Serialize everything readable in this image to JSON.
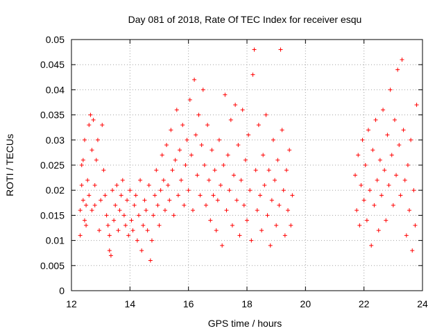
{
  "chart_data": {
    "type": "scatter",
    "title": "Day 081 of 2018, Rate Of TEC Index for receiver esqu",
    "xlabel": "GPS time / hours",
    "ylabel": "ROTI / TECUs",
    "xlim": [
      12,
      24
    ],
    "ylim": [
      0,
      0.05
    ],
    "xticks": [
      12,
      14,
      16,
      18,
      20,
      22,
      24
    ],
    "xtick_labels": [
      "12",
      "14",
      "16",
      "18",
      "20",
      "22",
      "24"
    ],
    "yticks": [
      0,
      0.005,
      0.01,
      0.015,
      0.02,
      0.025,
      0.03,
      0.035,
      0.04,
      0.045,
      0.05
    ],
    "ytick_labels": [
      "0",
      "0.005",
      "0.01",
      "0.015",
      "0.02",
      "0.025",
      "0.03",
      "0.035",
      "0.04",
      "0.045",
      "0.05"
    ],
    "grid": true,
    "marker": "+",
    "color": "#ff0000",
    "series": [
      {
        "name": "ROTI",
        "points": [
          [
            12.3,
            0.011
          ],
          [
            12.3,
            0.016
          ],
          [
            12.35,
            0.021
          ],
          [
            12.35,
            0.025
          ],
          [
            12.4,
            0.018
          ],
          [
            12.4,
            0.026
          ],
          [
            12.45,
            0.014
          ],
          [
            12.45,
            0.03
          ],
          [
            12.5,
            0.017
          ],
          [
            12.5,
            0.013
          ],
          [
            12.55,
            0.022
          ],
          [
            12.6,
            0.033
          ],
          [
            12.6,
            0.019
          ],
          [
            12.65,
            0.035
          ],
          [
            12.7,
            0.028
          ],
          [
            12.7,
            0.016
          ],
          [
            12.75,
            0.034
          ],
          [
            12.8,
            0.021
          ],
          [
            12.8,
            0.017
          ],
          [
            12.85,
            0.026
          ],
          [
            12.9,
            0.03
          ],
          [
            12.95,
            0.012
          ],
          [
            13.0,
            0.018
          ],
          [
            13.05,
            0.033
          ],
          [
            13.1,
            0.024
          ],
          [
            13.15,
            0.019
          ],
          [
            13.2,
            0.015
          ],
          [
            13.25,
            0.013
          ],
          [
            13.3,
            0.008
          ],
          [
            13.3,
            0.011
          ],
          [
            13.35,
            0.007
          ],
          [
            13.4,
            0.02
          ],
          [
            13.45,
            0.014
          ],
          [
            13.5,
            0.017
          ],
          [
            13.55,
            0.021
          ],
          [
            13.6,
            0.012
          ],
          [
            13.65,
            0.016
          ],
          [
            13.7,
            0.019
          ],
          [
            13.75,
            0.022
          ],
          [
            13.8,
            0.015
          ],
          [
            13.85,
            0.013
          ],
          [
            13.9,
            0.018
          ],
          [
            13.95,
            0.011
          ],
          [
            14.0,
            0.02
          ],
          [
            14.05,
            0.014
          ],
          [
            14.1,
            0.012
          ],
          [
            14.15,
            0.017
          ],
          [
            14.2,
            0.019
          ],
          [
            14.25,
            0.01
          ],
          [
            14.3,
            0.015
          ],
          [
            14.35,
            0.022
          ],
          [
            14.4,
            0.008
          ],
          [
            14.45,
            0.013
          ],
          [
            14.5,
            0.018
          ],
          [
            14.55,
            0.016
          ],
          [
            14.6,
            0.012
          ],
          [
            14.65,
            0.021
          ],
          [
            14.7,
            0.006
          ],
          [
            14.75,
            0.01
          ],
          [
            14.8,
            0.015
          ],
          [
            14.85,
            0.019
          ],
          [
            14.9,
            0.024
          ],
          [
            14.95,
            0.017
          ],
          [
            15.0,
            0.013
          ],
          [
            15.05,
            0.02
          ],
          [
            15.1,
            0.027
          ],
          [
            15.15,
            0.022
          ],
          [
            15.2,
            0.016
          ],
          [
            15.25,
            0.029
          ],
          [
            15.3,
            0.021
          ],
          [
            15.35,
            0.018
          ],
          [
            15.4,
            0.032
          ],
          [
            15.45,
            0.024
          ],
          [
            15.5,
            0.015
          ],
          [
            15.55,
            0.026
          ],
          [
            15.6,
            0.036
          ],
          [
            15.65,
            0.019
          ],
          [
            15.7,
            0.028
          ],
          [
            15.75,
            0.022
          ],
          [
            15.8,
            0.033
          ],
          [
            15.85,
            0.017
          ],
          [
            15.9,
            0.025
          ],
          [
            15.95,
            0.03
          ],
          [
            16.0,
            0.02
          ],
          [
            16.05,
            0.038
          ],
          [
            16.1,
            0.027
          ],
          [
            16.15,
            0.016
          ],
          [
            16.2,
            0.042
          ],
          [
            16.25,
            0.031
          ],
          [
            16.3,
            0.023
          ],
          [
            16.35,
            0.035
          ],
          [
            16.4,
            0.019
          ],
          [
            16.45,
            0.029
          ],
          [
            16.5,
            0.04
          ],
          [
            16.55,
            0.025
          ],
          [
            16.6,
            0.017
          ],
          [
            16.65,
            0.033
          ],
          [
            16.7,
            0.022
          ],
          [
            16.75,
            0.014
          ],
          [
            16.8,
            0.028
          ],
          [
            16.85,
            0.019
          ],
          [
            16.9,
            0.024
          ],
          [
            16.95,
            0.012
          ],
          [
            17.0,
            0.018
          ],
          [
            17.05,
            0.03
          ],
          [
            17.1,
            0.021
          ],
          [
            17.15,
            0.009
          ],
          [
            17.2,
            0.025
          ],
          [
            17.25,
            0.039
          ],
          [
            17.3,
            0.016
          ],
          [
            17.35,
            0.027
          ],
          [
            17.4,
            0.02
          ],
          [
            17.45,
            0.034
          ],
          [
            17.5,
            0.013
          ],
          [
            17.55,
            0.023
          ],
          [
            17.6,
            0.037
          ],
          [
            17.65,
            0.018
          ],
          [
            17.7,
            0.029
          ],
          [
            17.75,
            0.011
          ],
          [
            17.8,
            0.022
          ],
          [
            17.85,
            0.036
          ],
          [
            17.9,
            0.017
          ],
          [
            17.95,
            0.026
          ],
          [
            18.0,
            0.014
          ],
          [
            18.05,
            0.031
          ],
          [
            18.1,
            0.02
          ],
          [
            18.15,
            0.01
          ],
          [
            18.2,
            0.043
          ],
          [
            18.25,
            0.048
          ],
          [
            18.3,
            0.024
          ],
          [
            18.35,
            0.016
          ],
          [
            18.4,
            0.033
          ],
          [
            18.45,
            0.019
          ],
          [
            18.5,
            0.012
          ],
          [
            18.55,
            0.027
          ],
          [
            18.6,
            0.021
          ],
          [
            18.65,
            0.035
          ],
          [
            18.7,
            0.015
          ],
          [
            18.75,
            0.024
          ],
          [
            18.8,
            0.009
          ],
          [
            18.85,
            0.018
          ],
          [
            18.9,
            0.03
          ],
          [
            18.95,
            0.022
          ],
          [
            19.0,
            0.013
          ],
          [
            19.05,
            0.026
          ],
          [
            19.1,
            0.017
          ],
          [
            19.15,
            0.048
          ],
          [
            19.2,
            0.032
          ],
          [
            19.25,
            0.02
          ],
          [
            19.3,
            0.011
          ],
          [
            19.35,
            0.024
          ],
          [
            19.4,
            0.016
          ],
          [
            19.45,
            0.028
          ],
          [
            19.5,
            0.013
          ],
          [
            19.55,
            0.019
          ],
          [
            21.7,
            0.023
          ],
          [
            21.75,
            0.016
          ],
          [
            21.8,
            0.027
          ],
          [
            21.85,
            0.013
          ],
          [
            21.9,
            0.021
          ],
          [
            21.95,
            0.03
          ],
          [
            22.0,
            0.018
          ],
          [
            22.05,
            0.025
          ],
          [
            22.1,
            0.014
          ],
          [
            22.15,
            0.032
          ],
          [
            22.2,
            0.02
          ],
          [
            22.25,
            0.009
          ],
          [
            22.3,
            0.028
          ],
          [
            22.35,
            0.017
          ],
          [
            22.4,
            0.034
          ],
          [
            22.45,
            0.022
          ],
          [
            22.5,
            0.012
          ],
          [
            22.55,
            0.026
          ],
          [
            22.6,
            0.019
          ],
          [
            22.65,
            0.036
          ],
          [
            22.7,
            0.024
          ],
          [
            22.75,
            0.014
          ],
          [
            22.8,
            0.031
          ],
          [
            22.85,
            0.021
          ],
          [
            22.9,
            0.04
          ],
          [
            22.95,
            0.027
          ],
          [
            23.0,
            0.017
          ],
          [
            23.05,
            0.034
          ],
          [
            23.1,
            0.023
          ],
          [
            23.15,
            0.044
          ],
          [
            23.2,
            0.029
          ],
          [
            23.25,
            0.019
          ],
          [
            23.3,
            0.046
          ],
          [
            23.35,
            0.032
          ],
          [
            23.4,
            0.022
          ],
          [
            23.45,
            0.011
          ],
          [
            23.5,
            0.025
          ],
          [
            23.55,
            0.016
          ],
          [
            23.6,
            0.03
          ],
          [
            23.65,
            0.008
          ],
          [
            23.7,
            0.02
          ],
          [
            23.75,
            0.013
          ],
          [
            23.8,
            0.037
          ]
        ]
      }
    ]
  }
}
